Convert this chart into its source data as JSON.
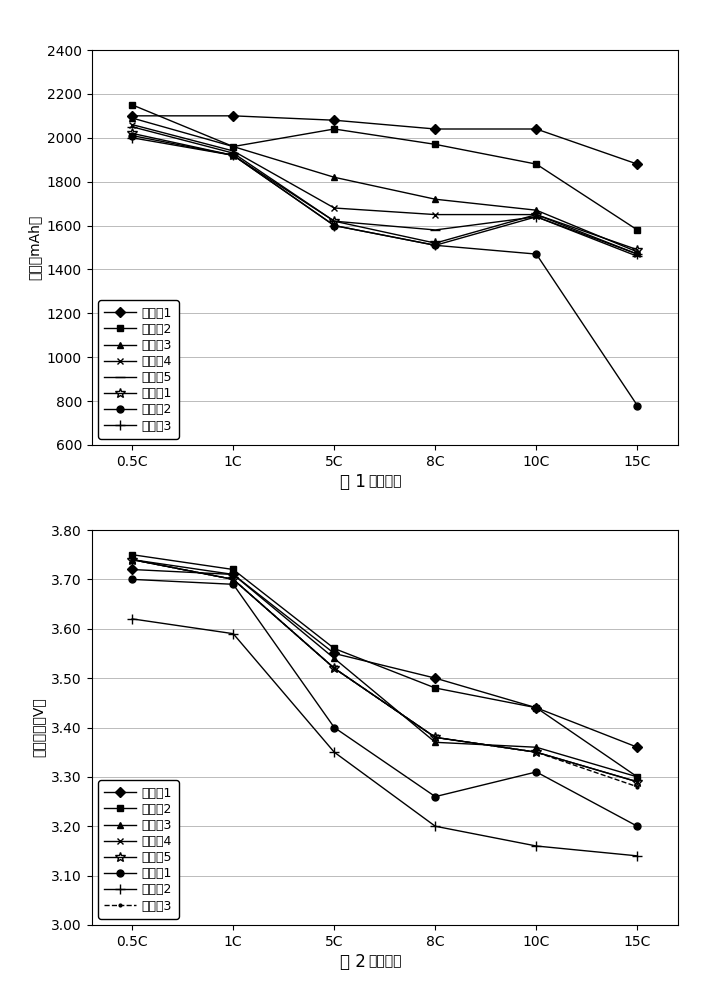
{
  "x_labels": [
    "0.5C",
    "1C",
    "5C",
    "8C",
    "10C",
    "15C"
  ],
  "x_positions": [
    0,
    1,
    2,
    3,
    4,
    5
  ],
  "chart1": {
    "ylabel": "容量（mAh）",
    "xlabel": "放电倍率",
    "caption": "图 1",
    "ylim": [
      600,
      2400
    ],
    "yticks": [
      600,
      800,
      1000,
      1200,
      1400,
      1600,
      1800,
      2000,
      2200,
      2400
    ],
    "series": [
      {
        "label": "实施例1",
        "marker": "D",
        "color": "#000000",
        "linestyle": "-",
        "markersize": 5,
        "values": [
          2100,
          2100,
          2080,
          2040,
          2040,
          1880
        ]
      },
      {
        "label": "实施例2",
        "marker": "s",
        "color": "#000000",
        "linestyle": "-",
        "markersize": 5,
        "values": [
          2150,
          1960,
          2040,
          1970,
          1880,
          1580
        ]
      },
      {
        "label": "实施例3",
        "marker": "^",
        "color": "#000000",
        "linestyle": "-",
        "markersize": 5,
        "values": [
          2090,
          1960,
          1820,
          1720,
          1670,
          1480
        ]
      },
      {
        "label": "实施例4",
        "marker": "x",
        "color": "#000000",
        "linestyle": "-",
        "markersize": 5,
        "values": [
          2060,
          1940,
          1680,
          1650,
          1650,
          1470
        ]
      },
      {
        "label": "实施例5",
        "marker": "_",
        "color": "#000000",
        "linestyle": "-",
        "markersize": 7,
        "values": [
          2050,
          1930,
          1620,
          1580,
          1640,
          1460
        ]
      },
      {
        "label": "比较例1",
        "marker": "*",
        "color": "#000000",
        "linestyle": "-",
        "markersize": 7,
        "values": [
          2020,
          1920,
          1620,
          1520,
          1650,
          1490
        ]
      },
      {
        "label": "比较例2",
        "marker": "o",
        "color": "#000000",
        "linestyle": "-",
        "markersize": 5,
        "values": [
          2010,
          1920,
          1600,
          1510,
          1470,
          780
        ]
      },
      {
        "label": "比较例3",
        "marker": "+",
        "color": "#000000",
        "linestyle": "-",
        "markersize": 7,
        "values": [
          2000,
          1920,
          1600,
          1510,
          1640,
          1470
        ]
      }
    ]
  },
  "chart2": {
    "ylabel": "中値电压（V）",
    "xlabel": "放电倍率",
    "caption": "图 2",
    "ylim": [
      3.0,
      3.8
    ],
    "yticks": [
      3.0,
      3.1,
      3.2,
      3.3,
      3.4,
      3.5,
      3.6,
      3.7,
      3.8
    ],
    "series": [
      {
        "label": "实施例1",
        "marker": "D",
        "color": "#000000",
        "linestyle": "-",
        "markersize": 5,
        "values": [
          3.72,
          3.71,
          3.55,
          3.5,
          3.44,
          3.36
        ]
      },
      {
        "label": "实施例2",
        "marker": "s",
        "color": "#000000",
        "linestyle": "-",
        "markersize": 5,
        "values": [
          3.75,
          3.72,
          3.56,
          3.48,
          3.44,
          3.3
        ]
      },
      {
        "label": "实施例3",
        "marker": "^",
        "color": "#000000",
        "linestyle": "-",
        "markersize": 5,
        "values": [
          3.74,
          3.71,
          3.54,
          3.37,
          3.36,
          3.3
        ]
      },
      {
        "label": "实施例4",
        "marker": "x",
        "color": "#000000",
        "linestyle": "-",
        "markersize": 5,
        "values": [
          3.74,
          3.7,
          3.52,
          3.38,
          3.35,
          3.29
        ]
      },
      {
        "label": "实施例5",
        "marker": "*",
        "color": "#000000",
        "linestyle": "-",
        "markersize": 7,
        "values": [
          3.74,
          3.7,
          3.52,
          3.38,
          3.35,
          3.29
        ]
      },
      {
        "label": "比较例1",
        "marker": "o",
        "color": "#000000",
        "linestyle": "-",
        "markersize": 5,
        "values": [
          3.7,
          3.69,
          3.4,
          3.26,
          3.31,
          3.2
        ]
      },
      {
        "label": "比较例2",
        "marker": "+",
        "color": "#000000",
        "linestyle": "-",
        "markersize": 7,
        "values": [
          3.62,
          3.59,
          3.35,
          3.2,
          3.16,
          3.14
        ]
      },
      {
        "label": "比较例3",
        "marker": ".",
        "color": "#000000",
        "linestyle": "--",
        "markersize": 4,
        "values": [
          3.74,
          3.7,
          3.52,
          3.38,
          3.35,
          3.28
        ]
      }
    ]
  },
  "background_color": "#ffffff",
  "grid_color": "#bbbbbb",
  "font_size": 10,
  "legend_fontsize": 9,
  "caption_fontsize": 12
}
